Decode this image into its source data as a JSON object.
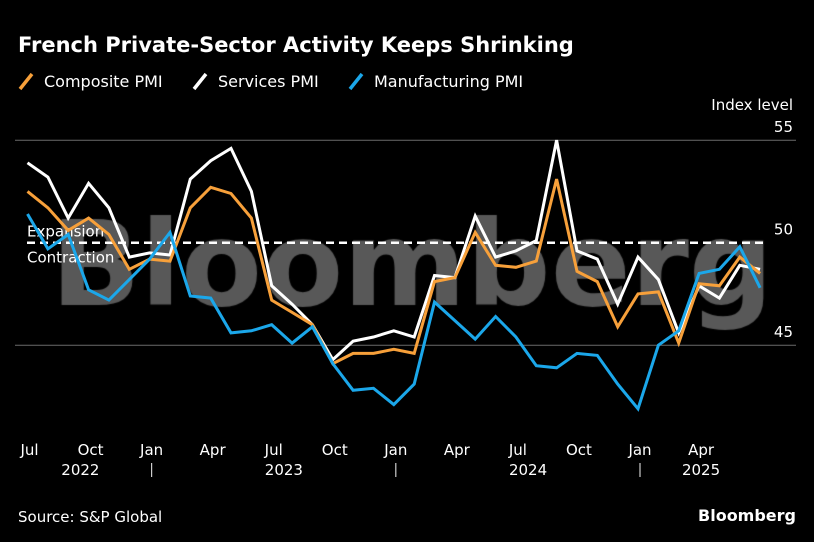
{
  "chart_data": {
    "type": "line",
    "title": "French Private-Sector Activity Keeps Shrinking",
    "ylabel": "Index level",
    "ylim": [
      41,
      56
    ],
    "yticks": [
      45,
      50,
      55
    ],
    "grid": true,
    "legend_position": "top-left",
    "reference_line": {
      "value": 50,
      "label_above": "Expansion",
      "label_below": "Contraction"
    },
    "x_start": "2022-07",
    "x_tick_labels": [
      {
        "month_index": 0,
        "label": "Jul"
      },
      {
        "month_index": 3,
        "label": "Oct"
      },
      {
        "month_index": 6,
        "label": "Jan"
      },
      {
        "month_index": 9,
        "label": "Apr"
      },
      {
        "month_index": 12,
        "label": "Jul"
      },
      {
        "month_index": 15,
        "label": "Oct"
      },
      {
        "month_index": 18,
        "label": "Jan"
      },
      {
        "month_index": 21,
        "label": "Apr"
      },
      {
        "month_index": 24,
        "label": "Jul"
      },
      {
        "month_index": 27,
        "label": "Oct"
      },
      {
        "month_index": 30,
        "label": "Jan"
      },
      {
        "month_index": 33,
        "label": "Apr"
      }
    ],
    "year_labels": [
      {
        "label": "2022",
        "center_month": 2.5
      },
      {
        "label": "2023",
        "center_month": 12.5
      },
      {
        "label": "2024",
        "center_month": 24.5
      },
      {
        "label": "2025",
        "center_month": 33
      }
    ],
    "year_separators": [
      6,
      18,
      30
    ],
    "series": [
      {
        "name": "Composite PMI",
        "color": "#f7a03a",
        "values": [
          52.5,
          51.7,
          50.6,
          51.2,
          50.4,
          48.7,
          49.2,
          49.1,
          51.7,
          52.7,
          52.4,
          51.2,
          47.2,
          46.6,
          46.0,
          44.1,
          44.6,
          44.6,
          44.8,
          44.6,
          48.1,
          48.3,
          50.5,
          48.9,
          48.8,
          49.1,
          53.1,
          48.6,
          48.1,
          45.9,
          47.5,
          47.6,
          45.1,
          48.0,
          47.9,
          49.3,
          48.5
        ]
      },
      {
        "name": "Services PMI",
        "color": "#ffffff",
        "values": [
          53.9,
          53.2,
          51.2,
          52.9,
          51.7,
          49.3,
          49.5,
          49.4,
          53.1,
          54.0,
          54.6,
          52.5,
          47.9,
          47.0,
          46.0,
          44.3,
          45.2,
          45.4,
          45.7,
          45.4,
          48.4,
          48.3,
          51.3,
          49.3,
          49.6,
          50.1,
          55.0,
          49.6,
          49.2,
          47.0,
          49.3,
          48.2,
          45.6,
          47.9,
          47.3,
          48.9,
          48.7
        ]
      },
      {
        "name": "Manufacturing PMI",
        "color": "#1ba7ea",
        "values": [
          51.4,
          49.7,
          50.4,
          47.7,
          47.2,
          48.2,
          49.2,
          50.5,
          47.4,
          47.3,
          45.6,
          45.7,
          46.0,
          45.1,
          45.9,
          44.1,
          42.8,
          42.9,
          42.1,
          43.1,
          47.1,
          46.2,
          45.3,
          46.4,
          45.4,
          44.0,
          43.9,
          44.6,
          44.5,
          43.1,
          41.9,
          45.0,
          45.7,
          48.5,
          48.7,
          49.8,
          47.8
        ]
      }
    ]
  },
  "source": "Source: S&P Global",
  "brand": "Bloomberg",
  "watermark": "Bloomberg"
}
